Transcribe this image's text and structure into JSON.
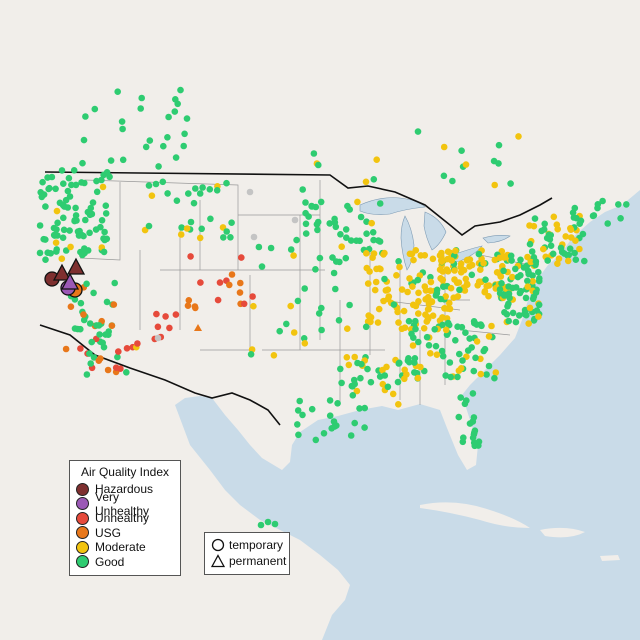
{
  "colors": {
    "land": "#f1eeea",
    "water": "#c9dbe8",
    "border_thin": "#9a9a9a",
    "border_thick": "#111111"
  },
  "legend": {
    "title": "Air Quality Index",
    "categories": [
      {
        "key": "hazardous",
        "label": "Hazardous",
        "color": "#7e2f2f"
      },
      {
        "key": "very_unhealthy",
        "label": "Very Unhealthy",
        "color": "#9b59b6"
      },
      {
        "key": "unhealthy",
        "label": "Unhealthy",
        "color": "#e64a3b"
      },
      {
        "key": "usg",
        "label": "USG",
        "color": "#e8771a"
      },
      {
        "key": "moderate",
        "label": "Moderate",
        "color": "#f2c40f"
      },
      {
        "key": "good",
        "label": "Good",
        "color": "#2ecc71"
      }
    ],
    "shapes": [
      {
        "key": "temporary",
        "label": "temporary",
        "shape": "circle"
      },
      {
        "key": "permanent",
        "label": "permanent",
        "shape": "triangle"
      }
    ]
  }
}
